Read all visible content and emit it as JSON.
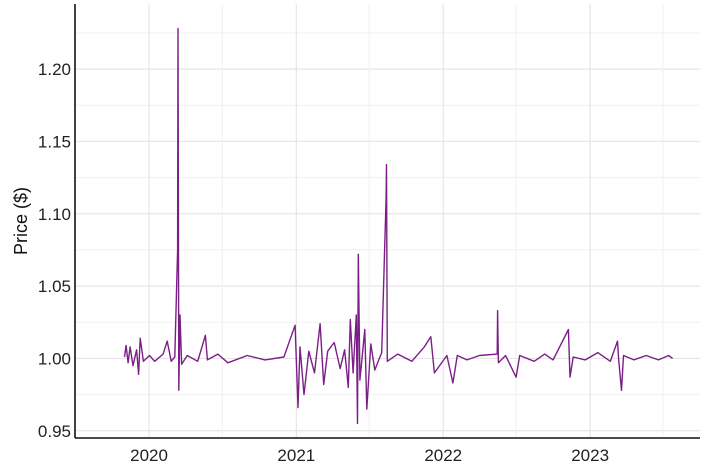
{
  "chart_data": {
    "type": "line",
    "title": "",
    "xlabel": "",
    "ylabel": "Price ($)",
    "xlim": [
      "2019-07-01",
      "2023-10-01"
    ],
    "ylim": [
      0.945,
      1.245
    ],
    "x_ticks": [
      "2020",
      "2021",
      "2022",
      "2023"
    ],
    "y_ticks": [
      "0.95",
      "1.00",
      "1.05",
      "1.10",
      "1.15",
      "1.20"
    ],
    "grid": true,
    "color": "#7b1f86",
    "series": [
      {
        "points": [
          [
            "2019-11-01",
            1.001
          ],
          [
            "2019-11-05",
            1.009
          ],
          [
            "2019-11-10",
            0.997
          ],
          [
            "2019-11-15",
            1.008
          ],
          [
            "2019-11-22",
            0.995
          ],
          [
            "2019-12-01",
            1.006
          ],
          [
            "2019-12-06",
            0.989
          ],
          [
            "2019-12-10",
            1.014
          ],
          [
            "2019-12-18",
            0.998
          ],
          [
            "2020-01-02",
            1.002
          ],
          [
            "2020-01-15",
            0.998
          ],
          [
            "2020-02-05",
            1.003
          ],
          [
            "2020-02-15",
            1.012
          ],
          [
            "2020-02-25",
            0.998
          ],
          [
            "2020-03-05",
            1.001
          ],
          [
            "2020-03-12",
            1.075
          ],
          [
            "2020-03-13",
            1.228
          ],
          [
            "2020-03-15",
            0.978
          ],
          [
            "2020-03-18",
            1.03
          ],
          [
            "2020-03-22",
            0.996
          ],
          [
            "2020-04-05",
            1.002
          ],
          [
            "2020-05-01",
            0.998
          ],
          [
            "2020-05-20",
            1.016
          ],
          [
            "2020-05-25",
            0.999
          ],
          [
            "2020-06-20",
            1.003
          ],
          [
            "2020-07-15",
            0.997
          ],
          [
            "2020-09-01",
            1.002
          ],
          [
            "2020-10-15",
            0.999
          ],
          [
            "2020-12-01",
            1.001
          ],
          [
            "2020-12-29",
            1.023
          ],
          [
            "2021-01-05",
            0.966
          ],
          [
            "2021-01-10",
            1.008
          ],
          [
            "2021-01-20",
            0.975
          ],
          [
            "2021-02-01",
            1.005
          ],
          [
            "2021-02-15",
            0.99
          ],
          [
            "2021-03-01",
            1.024
          ],
          [
            "2021-03-10",
            0.982
          ],
          [
            "2021-03-20",
            1.005
          ],
          [
            "2021-04-05",
            1.011
          ],
          [
            "2021-04-20",
            0.993
          ],
          [
            "2021-05-01",
            1.006
          ],
          [
            "2021-05-10",
            0.98
          ],
          [
            "2021-05-15",
            1.027
          ],
          [
            "2021-05-22",
            0.99
          ],
          [
            "2021-05-30",
            1.03
          ],
          [
            "2021-06-02",
            0.955
          ],
          [
            "2021-06-04",
            1.072
          ],
          [
            "2021-06-08",
            0.985
          ],
          [
            "2021-06-20",
            1.02
          ],
          [
            "2021-06-25",
            0.965
          ],
          [
            "2021-07-05",
            1.01
          ],
          [
            "2021-07-15",
            0.992
          ],
          [
            "2021-08-01",
            1.004
          ],
          [
            "2021-08-12",
            1.111
          ],
          [
            "2021-08-13",
            1.134
          ],
          [
            "2021-08-15",
            0.998
          ],
          [
            "2021-09-10",
            1.003
          ],
          [
            "2021-10-15",
            0.998
          ],
          [
            "2021-11-15",
            1.008
          ],
          [
            "2021-12-01",
            1.015
          ],
          [
            "2021-12-10",
            0.99
          ],
          [
            "2022-01-10",
            1.002
          ],
          [
            "2022-01-25",
            0.983
          ],
          [
            "2022-02-05",
            1.002
          ],
          [
            "2022-03-01",
            0.999
          ],
          [
            "2022-04-01",
            1.002
          ],
          [
            "2022-05-15",
            1.003
          ],
          [
            "2022-05-16",
            1.033
          ],
          [
            "2022-05-18",
            0.997
          ],
          [
            "2022-06-05",
            1.002
          ],
          [
            "2022-07-01",
            0.987
          ],
          [
            "2022-07-10",
            1.002
          ],
          [
            "2022-08-15",
            0.998
          ],
          [
            "2022-09-10",
            1.003
          ],
          [
            "2022-10-01",
            0.999
          ],
          [
            "2022-11-08",
            1.02
          ],
          [
            "2022-11-12",
            0.987
          ],
          [
            "2022-11-20",
            1.001
          ],
          [
            "2022-12-20",
            0.999
          ],
          [
            "2023-01-20",
            1.004
          ],
          [
            "2023-02-20",
            0.998
          ],
          [
            "2023-03-10",
            1.012
          ],
          [
            "2023-03-13",
            0.999
          ],
          [
            "2023-03-20",
            0.978
          ],
          [
            "2023-03-25",
            1.002
          ],
          [
            "2023-04-20",
            0.999
          ],
          [
            "2023-05-20",
            1.002
          ],
          [
            "2023-06-20",
            0.999
          ],
          [
            "2023-07-15",
            1.002
          ],
          [
            "2023-07-25",
            1.0
          ]
        ]
      }
    ]
  }
}
